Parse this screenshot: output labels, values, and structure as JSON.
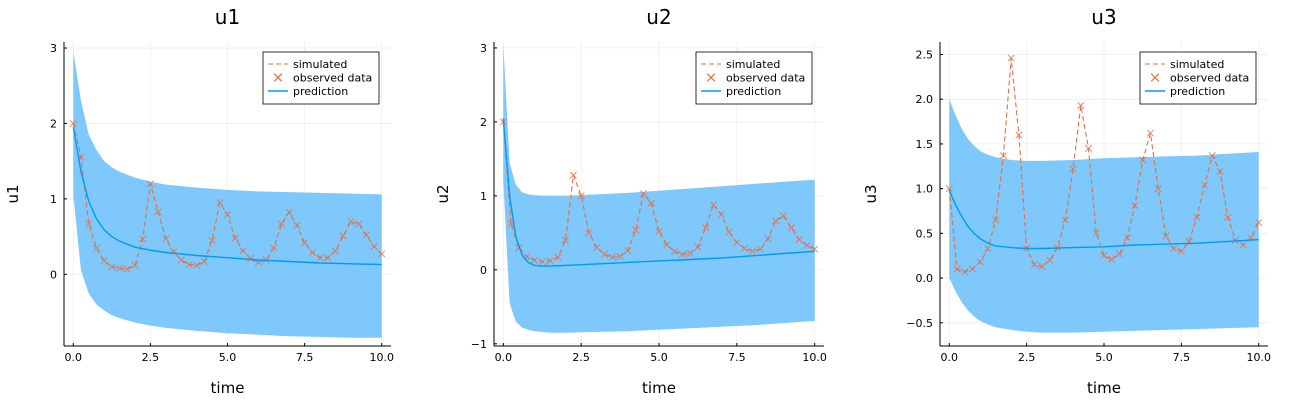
{
  "chart_data": [
    {
      "type": "line",
      "title": "u1",
      "xlabel": "time",
      "ylabel": "u1",
      "xlim": [
        -0.3,
        10.3
      ],
      "ylim": [
        -0.95,
        3.08
      ],
      "xticks": [
        0,
        2.5,
        5,
        7.5,
        10
      ],
      "xtick_labels": [
        "0.0",
        "2.5",
        "5.0",
        "7.5",
        "10.0"
      ],
      "yticks": [
        0,
        1,
        2,
        3
      ],
      "ytick_labels": [
        "0",
        "1",
        "2",
        "3"
      ],
      "grid": true,
      "legend_position": "top-right",
      "legend": [
        "simulated",
        "observed data",
        "prediction"
      ],
      "series": [
        {
          "name": "simulated",
          "style": "dashed",
          "color": "#e26f46",
          "x": [
            0,
            0.25,
            0.5,
            0.75,
            1.0,
            1.25,
            1.5,
            1.75,
            2.0,
            2.25,
            2.5,
            2.75,
            3.0,
            3.25,
            3.5,
            3.75,
            4.0,
            4.25,
            4.5,
            4.75,
            5.0,
            5.25,
            5.5,
            5.75,
            6.0,
            6.25,
            6.5,
            6.75,
            7.0,
            7.25,
            7.5,
            7.75,
            8.0,
            8.25,
            8.5,
            8.75,
            9.0,
            9.25,
            9.5,
            9.75,
            10.0
          ],
          "y": [
            2.0,
            1.55,
            0.67,
            0.35,
            0.18,
            0.1,
            0.08,
            0.07,
            0.12,
            0.47,
            1.2,
            0.83,
            0.47,
            0.3,
            0.19,
            0.13,
            0.12,
            0.17,
            0.45,
            0.95,
            0.79,
            0.48,
            0.31,
            0.21,
            0.16,
            0.19,
            0.35,
            0.67,
            0.82,
            0.65,
            0.42,
            0.29,
            0.22,
            0.22,
            0.31,
            0.51,
            0.7,
            0.67,
            0.52,
            0.37,
            0.27
          ]
        },
        {
          "name": "observed data",
          "style": "markers-x",
          "color": "#e26f46",
          "x": [
            0,
            0.25,
            0.5,
            0.75,
            1.0,
            1.25,
            1.5,
            1.75,
            2.0,
            2.25,
            2.5,
            2.75,
            3.0,
            3.25,
            3.5,
            3.75,
            4.0,
            4.25,
            4.5,
            4.75,
            5.0,
            5.25,
            5.5,
            5.75,
            6.0,
            6.25,
            6.5,
            6.75,
            7.0,
            7.25,
            7.5,
            7.75,
            8.0,
            8.25,
            8.5,
            8.75,
            9.0,
            9.25,
            9.5,
            9.75,
            10.0
          ],
          "y": [
            2.0,
            1.55,
            0.67,
            0.35,
            0.18,
            0.1,
            0.08,
            0.07,
            0.12,
            0.47,
            1.2,
            0.83,
            0.47,
            0.3,
            0.19,
            0.13,
            0.12,
            0.17,
            0.45,
            0.95,
            0.79,
            0.48,
            0.31,
            0.21,
            0.16,
            0.19,
            0.35,
            0.67,
            0.82,
            0.65,
            0.42,
            0.29,
            0.22,
            0.22,
            0.31,
            0.51,
            0.7,
            0.67,
            0.52,
            0.37,
            0.27
          ]
        },
        {
          "name": "prediction",
          "style": "solid",
          "color": "#009af9",
          "x": [
            0,
            0.25,
            0.5,
            0.75,
            1,
            1.25,
            1.5,
            2,
            2.5,
            3,
            4,
            5,
            6,
            7,
            8,
            9,
            10
          ],
          "y": [
            1.95,
            1.36,
            0.97,
            0.74,
            0.59,
            0.5,
            0.44,
            0.36,
            0.32,
            0.29,
            0.25,
            0.22,
            0.19,
            0.17,
            0.15,
            0.14,
            0.13
          ],
          "band_lower": [
            1.05,
            0.05,
            -0.25,
            -0.4,
            -0.48,
            -0.54,
            -0.58,
            -0.64,
            -0.68,
            -0.71,
            -0.75,
            -0.78,
            -0.8,
            -0.82,
            -0.83,
            -0.84,
            -0.84
          ],
          "band_upper": [
            2.95,
            2.3,
            1.85,
            1.65,
            1.5,
            1.42,
            1.36,
            1.28,
            1.23,
            1.19,
            1.15,
            1.12,
            1.1,
            1.09,
            1.08,
            1.07,
            1.06
          ]
        }
      ]
    },
    {
      "type": "line",
      "title": "u2",
      "xlabel": "time",
      "ylabel": "u2",
      "xlim": [
        -0.3,
        10.3
      ],
      "ylim": [
        -1.03,
        3.08
      ],
      "xticks": [
        0,
        2.5,
        5,
        7.5,
        10
      ],
      "xtick_labels": [
        "0.0",
        "2.5",
        "5.0",
        "7.5",
        "10.0"
      ],
      "yticks": [
        -1,
        0,
        1,
        2,
        3
      ],
      "ytick_labels": [
        "−1",
        "0",
        "1",
        "2",
        "3"
      ],
      "grid": true,
      "legend_position": "top-right",
      "legend": [
        "simulated",
        "observed data",
        "prediction"
      ],
      "series": [
        {
          "name": "simulated",
          "style": "dashed",
          "color": "#e26f46",
          "x": [
            0,
            0.25,
            0.5,
            0.75,
            1.0,
            1.25,
            1.5,
            1.75,
            2.0,
            2.25,
            2.5,
            2.75,
            3.0,
            3.25,
            3.5,
            3.75,
            4.0,
            4.25,
            4.5,
            4.75,
            5.0,
            5.25,
            5.5,
            5.75,
            6.0,
            6.25,
            6.5,
            6.75,
            7.0,
            7.25,
            7.5,
            7.75,
            8.0,
            8.25,
            8.5,
            8.75,
            9.0,
            9.25,
            9.5,
            9.75,
            10.0
          ],
          "y": [
            2.0,
            0.62,
            0.3,
            0.18,
            0.13,
            0.11,
            0.12,
            0.17,
            0.4,
            1.28,
            1.0,
            0.5,
            0.3,
            0.21,
            0.17,
            0.18,
            0.26,
            0.54,
            1.03,
            0.9,
            0.52,
            0.34,
            0.25,
            0.21,
            0.22,
            0.31,
            0.57,
            0.88,
            0.75,
            0.51,
            0.37,
            0.29,
            0.25,
            0.28,
            0.42,
            0.66,
            0.73,
            0.57,
            0.41,
            0.33,
            0.28
          ]
        },
        {
          "name": "observed data",
          "style": "markers-x",
          "color": "#e26f46",
          "x": [
            0,
            0.25,
            0.5,
            0.75,
            1.0,
            1.25,
            1.5,
            1.75,
            2.0,
            2.25,
            2.5,
            2.75,
            3.0,
            3.25,
            3.5,
            3.75,
            4.0,
            4.25,
            4.5,
            4.75,
            5.0,
            5.25,
            5.5,
            5.75,
            6.0,
            6.25,
            6.5,
            6.75,
            7.0,
            7.25,
            7.5,
            7.75,
            8.0,
            8.25,
            8.5,
            8.75,
            9.0,
            9.25,
            9.5,
            9.75,
            10.0
          ],
          "y": [
            2.0,
            0.62,
            0.3,
            0.18,
            0.13,
            0.11,
            0.12,
            0.17,
            0.4,
            1.28,
            1.0,
            0.5,
            0.3,
            0.21,
            0.17,
            0.18,
            0.26,
            0.54,
            1.03,
            0.9,
            0.52,
            0.34,
            0.25,
            0.21,
            0.22,
            0.31,
            0.57,
            0.88,
            0.75,
            0.51,
            0.37,
            0.29,
            0.25,
            0.28,
            0.42,
            0.66,
            0.73,
            0.57,
            0.41,
            0.33,
            0.28
          ]
        },
        {
          "name": "prediction",
          "style": "solid",
          "color": "#009af9",
          "x": [
            0,
            0.2,
            0.4,
            0.6,
            0.8,
            1.0,
            1.25,
            1.5,
            2,
            3,
            4,
            5,
            6,
            7,
            8,
            9,
            10
          ],
          "y": [
            2.05,
            1.0,
            0.45,
            0.2,
            0.1,
            0.06,
            0.05,
            0.05,
            0.06,
            0.08,
            0.1,
            0.12,
            0.14,
            0.16,
            0.19,
            0.22,
            0.25
          ],
          "band_lower": [
            1.2,
            -0.45,
            -0.7,
            -0.78,
            -0.81,
            -0.83,
            -0.84,
            -0.85,
            -0.85,
            -0.84,
            -0.83,
            -0.81,
            -0.79,
            -0.77,
            -0.75,
            -0.72,
            -0.69
          ],
          "band_upper": [
            3.05,
            1.45,
            1.15,
            1.05,
            1.02,
            1.01,
            1.0,
            1.0,
            1.0,
            1.02,
            1.04,
            1.07,
            1.1,
            1.13,
            1.16,
            1.19,
            1.22
          ]
        }
      ]
    },
    {
      "type": "line",
      "title": "u3",
      "xlabel": "time",
      "ylabel": "u3",
      "xlim": [
        -0.3,
        10.3
      ],
      "ylim": [
        -0.76,
        2.64
      ],
      "xticks": [
        0,
        2.5,
        5,
        7.5,
        10
      ],
      "xtick_labels": [
        "0.0",
        "2.5",
        "5.0",
        "7.5",
        "10.0"
      ],
      "yticks": [
        -0.5,
        0,
        0.5,
        1,
        1.5,
        2,
        2.5
      ],
      "ytick_labels": [
        "−0.5",
        "0.0",
        "0.5",
        "1.0",
        "1.5",
        "2.0",
        "2.5"
      ],
      "grid": true,
      "legend_position": "top-right",
      "legend": [
        "simulated",
        "observed data",
        "prediction"
      ],
      "series": [
        {
          "name": "simulated",
          "style": "dashed",
          "color": "#e26f46",
          "x": [
            0,
            0.25,
            0.5,
            0.75,
            1.0,
            1.25,
            1.5,
            1.75,
            2.0,
            2.25,
            2.5,
            2.75,
            3.0,
            3.25,
            3.5,
            3.75,
            4.0,
            4.25,
            4.5,
            4.75,
            5.0,
            5.25,
            5.5,
            5.75,
            6.0,
            6.25,
            6.5,
            6.75,
            7.0,
            7.25,
            7.5,
            7.75,
            8.0,
            8.25,
            8.5,
            8.75,
            9.0,
            9.25,
            9.5,
            9.75,
            10.0
          ],
          "y": [
            1.0,
            0.1,
            0.07,
            0.1,
            0.18,
            0.33,
            0.65,
            1.37,
            2.46,
            1.6,
            0.33,
            0.15,
            0.13,
            0.2,
            0.34,
            0.65,
            1.22,
            1.93,
            1.45,
            0.5,
            0.25,
            0.21,
            0.27,
            0.45,
            0.81,
            1.32,
            1.62,
            1.0,
            0.47,
            0.33,
            0.3,
            0.41,
            0.68,
            1.04,
            1.37,
            1.19,
            0.68,
            0.42,
            0.37,
            0.45,
            0.62
          ]
        },
        {
          "name": "observed data",
          "style": "markers-x",
          "color": "#e26f46",
          "x": [
            0,
            0.25,
            0.5,
            0.75,
            1.0,
            1.25,
            1.5,
            1.75,
            2.0,
            2.25,
            2.5,
            2.75,
            3.0,
            3.25,
            3.5,
            3.75,
            4.0,
            4.25,
            4.5,
            4.75,
            5.0,
            5.25,
            5.5,
            5.75,
            6.0,
            6.25,
            6.5,
            6.75,
            7.0,
            7.25,
            7.5,
            7.75,
            8.0,
            8.25,
            8.5,
            8.75,
            9.0,
            9.25,
            9.5,
            9.75,
            10.0
          ],
          "y": [
            1.0,
            0.1,
            0.07,
            0.1,
            0.18,
            0.33,
            0.65,
            1.37,
            2.46,
            1.6,
            0.33,
            0.15,
            0.13,
            0.2,
            0.34,
            0.65,
            1.22,
            1.93,
            1.45,
            0.5,
            0.25,
            0.21,
            0.27,
            0.45,
            0.81,
            1.32,
            1.62,
            1.0,
            0.47,
            0.33,
            0.3,
            0.41,
            0.68,
            1.04,
            1.37,
            1.19,
            0.68,
            0.42,
            0.37,
            0.45,
            0.62
          ]
        },
        {
          "name": "prediction",
          "style": "solid",
          "color": "#009af9",
          "x": [
            0,
            0.2,
            0.4,
            0.6,
            0.8,
            1.0,
            1.25,
            1.5,
            2,
            2.5,
            3,
            4,
            5,
            6,
            7,
            8,
            9,
            10
          ],
          "y": [
            0.98,
            0.82,
            0.69,
            0.58,
            0.5,
            0.44,
            0.39,
            0.36,
            0.34,
            0.33,
            0.33,
            0.34,
            0.35,
            0.37,
            0.38,
            0.39,
            0.41,
            0.43
          ],
          "band_lower": [
            0.0,
            -0.15,
            -0.27,
            -0.36,
            -0.43,
            -0.48,
            -0.52,
            -0.55,
            -0.58,
            -0.6,
            -0.61,
            -0.61,
            -0.6,
            -0.59,
            -0.58,
            -0.57,
            -0.56,
            -0.55
          ],
          "band_upper": [
            2.0,
            1.82,
            1.67,
            1.56,
            1.48,
            1.42,
            1.38,
            1.35,
            1.32,
            1.31,
            1.31,
            1.32,
            1.34,
            1.35,
            1.36,
            1.37,
            1.39,
            1.41
          ]
        }
      ]
    }
  ]
}
